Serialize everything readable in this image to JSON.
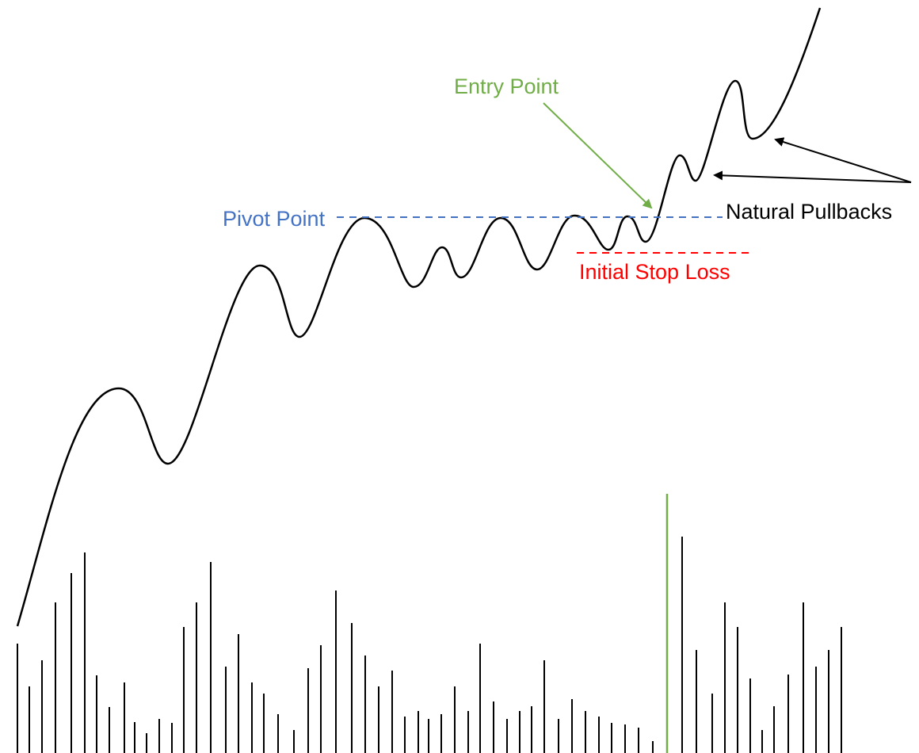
{
  "labels": {
    "entry_point": "Entry Point",
    "pivot_point": "Pivot Point",
    "natural_pullbacks": "Natural Pullbacks",
    "initial_stop_loss": "Initial Stop Loss"
  },
  "colors": {
    "price_line": "#000000",
    "entry": "#70AD47",
    "pivot": "#4472C4",
    "stop_loss": "#FF0000",
    "volume": "#000000",
    "breakout_volume": "#70AD47",
    "pullback_label": "#000000"
  }
}
